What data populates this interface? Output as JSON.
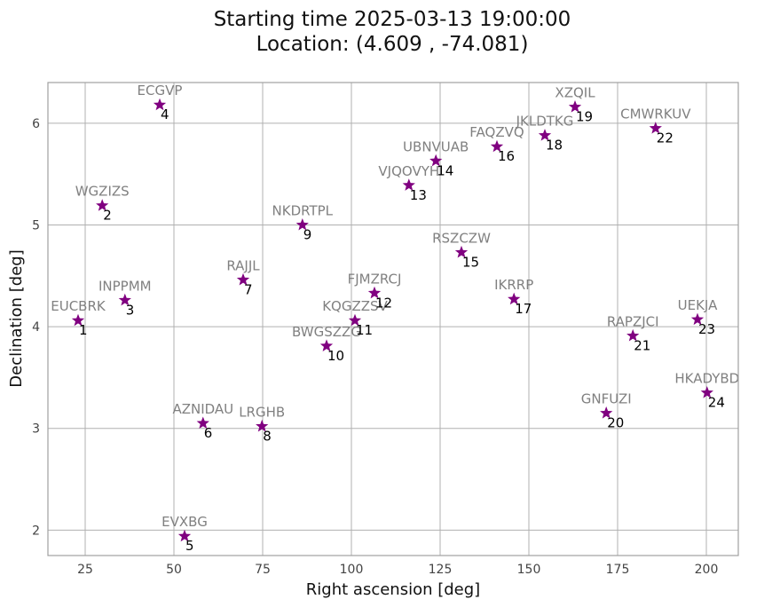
{
  "chart_data": {
    "type": "scatter",
    "title_lines": [
      "Starting time 2025-03-13 19:00:00",
      "Location: (4.609 , -74.081)"
    ],
    "xlabel": "Right ascension [deg]",
    "ylabel": "Declination [deg]",
    "xlim": [
      14.5,
      209
    ],
    "ylim": [
      1.75,
      6.4
    ],
    "xticks": [
      25,
      50,
      75,
      100,
      125,
      150,
      175,
      200
    ],
    "yticks": [
      2,
      3,
      4,
      5,
      6
    ],
    "grid": true,
    "marker": "star",
    "marker_color": "#800080",
    "name_color": "#808080",
    "number_color": "#000000",
    "points": [
      {
        "num": "1",
        "name": "EUCBRK",
        "x": 23.0,
        "y": 4.06
      },
      {
        "num": "2",
        "name": "WGZIZS",
        "x": 29.8,
        "y": 5.19
      },
      {
        "num": "3",
        "name": "INPPMM",
        "x": 36.2,
        "y": 4.26
      },
      {
        "num": "4",
        "name": "ECGVP",
        "x": 46.0,
        "y": 6.18
      },
      {
        "num": "5",
        "name": "EVXBG",
        "x": 53.0,
        "y": 1.94
      },
      {
        "num": "6",
        "name": "AZNIDAU",
        "x": 58.2,
        "y": 3.05
      },
      {
        "num": "7",
        "name": "RAJJL",
        "x": 69.5,
        "y": 4.46
      },
      {
        "num": "8",
        "name": "LRGHB",
        "x": 74.8,
        "y": 3.02
      },
      {
        "num": "9",
        "name": "NKDRTPL",
        "x": 86.2,
        "y": 5.0
      },
      {
        "num": "10",
        "name": "BWGSZZG",
        "x": 93.0,
        "y": 3.81
      },
      {
        "num": "11",
        "name": "KQGZZSV",
        "x": 101.0,
        "y": 4.06
      },
      {
        "num": "12",
        "name": "FJMZRCJ",
        "x": 106.5,
        "y": 4.33
      },
      {
        "num": "13",
        "name": "VJQOVYH",
        "x": 116.2,
        "y": 5.39
      },
      {
        "num": "14",
        "name": "UBNVUAB",
        "x": 123.8,
        "y": 5.63
      },
      {
        "num": "15",
        "name": "RSZCZW",
        "x": 131.0,
        "y": 4.73
      },
      {
        "num": "16",
        "name": "FAQZVQ",
        "x": 141.0,
        "y": 5.77
      },
      {
        "num": "17",
        "name": "IKRRP",
        "x": 145.8,
        "y": 4.27
      },
      {
        "num": "18",
        "name": "JKLDTKG",
        "x": 154.5,
        "y": 5.88
      },
      {
        "num": "19",
        "name": "XZQIL",
        "x": 163.0,
        "y": 6.16
      },
      {
        "num": "20",
        "name": "GNFUZI",
        "x": 171.8,
        "y": 3.15
      },
      {
        "num": "21",
        "name": "RAPZJCI",
        "x": 179.3,
        "y": 3.91
      },
      {
        "num": "22",
        "name": "CMWRKUV",
        "x": 185.7,
        "y": 5.95
      },
      {
        "num": "23",
        "name": "UEKJA",
        "x": 197.5,
        "y": 4.07
      },
      {
        "num": "24",
        "name": "HKADYBD",
        "x": 200.2,
        "y": 3.35
      }
    ]
  }
}
